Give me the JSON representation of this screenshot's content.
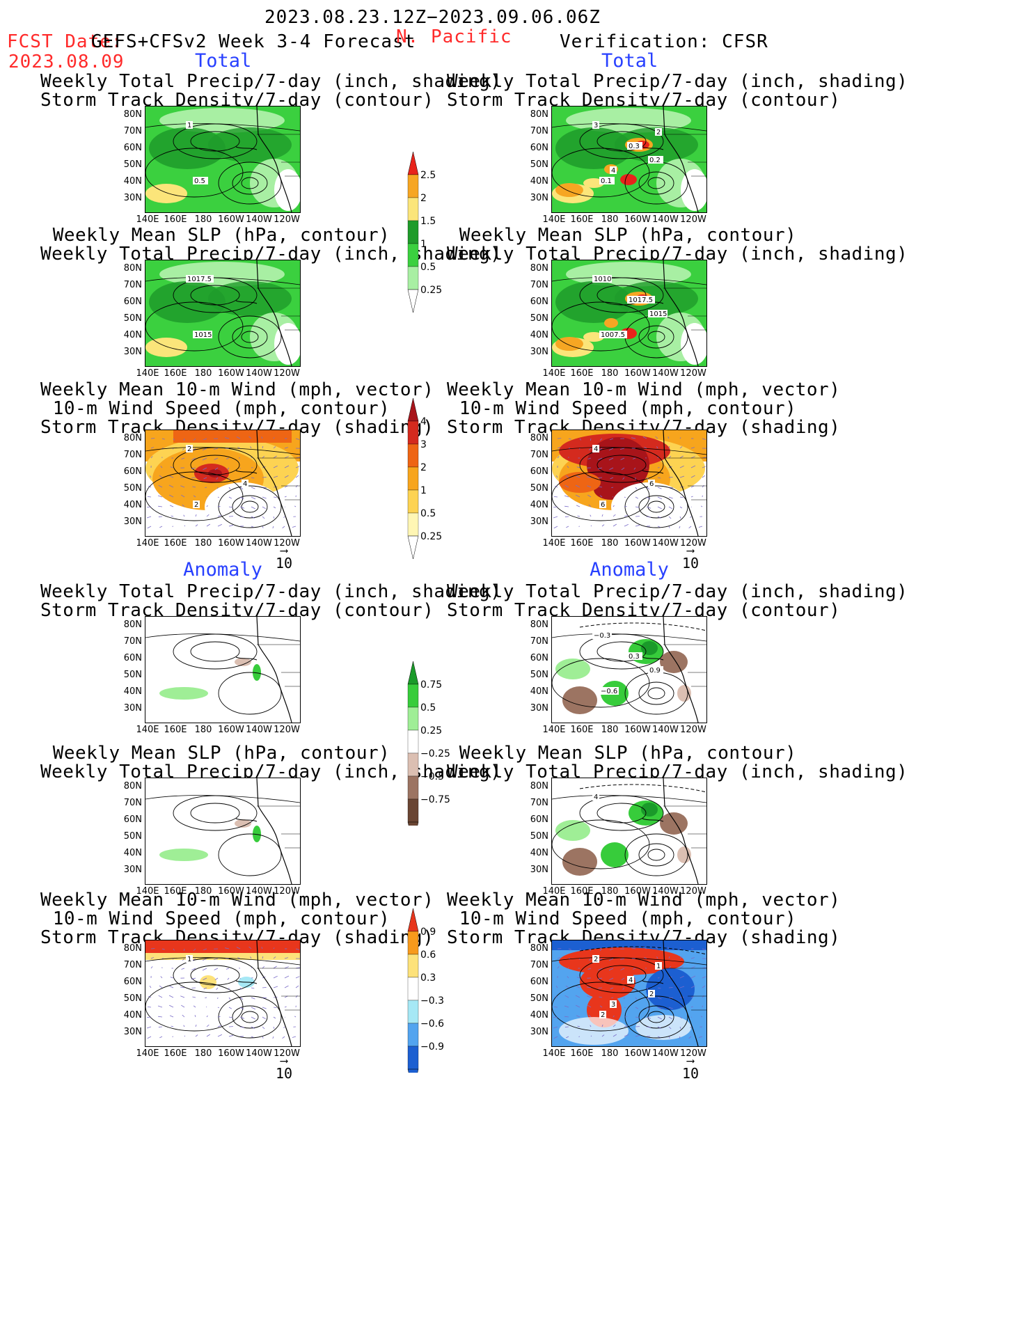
{
  "header": {
    "date_range": "2023.08.23.12Z−2023.09.06.06Z",
    "fcst_label": "FCST Date:",
    "fcst_model": "GEFS+CFSv2 Week 3-4 Forecast",
    "fcst_date": "2023.08.09",
    "region": "N. Pacific",
    "verification": "Verification: CFSR"
  },
  "sections": {
    "total": "Total",
    "anomaly": "Anomaly"
  },
  "panel_titles": {
    "precip_storm": [
      "Weekly Total Precip/7-day (inch, shading)",
      "Storm Track Density/7-day (contour)"
    ],
    "slp_precip": [
      "Weekly Mean SLP (hPa, contour)",
      "Weekly Total Precip/7-day (inch, shading)"
    ],
    "wind_storm": [
      "Weekly Mean 10-m Wind (mph, vector)",
      "10-m Wind Speed (mph, contour)",
      "Storm Track Density/7-day (shading)"
    ]
  },
  "axes": {
    "lat_labels": [
      "80N",
      "70N",
      "60N",
      "50N",
      "40N",
      "30N"
    ],
    "lon_labels": [
      "140E",
      "160E",
      "180",
      "160W",
      "140W",
      "120W"
    ]
  },
  "vector_ref": "10",
  "colorbars": {
    "precip_total": {
      "labels": [
        "2.5",
        "2",
        "1.5",
        "1",
        "0.5",
        "0.25"
      ],
      "colors": [
        "#e8231b",
        "#f6a623",
        "#fbe57a",
        "#1f9b2a",
        "#3bd03f",
        "#a8efa3"
      ]
    },
    "storm_total": {
      "labels": [
        "4",
        "3",
        "2",
        "1",
        "0.5",
        "0.25"
      ],
      "colors": [
        "#a8141a",
        "#d42a1e",
        "#ee6514",
        "#f7a51d",
        "#fdd352",
        "#fff6b4"
      ]
    },
    "precip_anom": {
      "labels": [
        "0.75",
        "0.5",
        "0.25",
        "−0.25",
        "−0.5",
        "−0.75"
      ],
      "colors": [
        "#1a9a2a",
        "#37cc3b",
        "#9fee96",
        "#ffffff",
        "#dbbfb2",
        "#9c7462",
        "#6a4533"
      ]
    },
    "storm_anom": {
      "labels": [
        "0.9",
        "0.6",
        "0.3",
        "−0.3",
        "−0.6",
        "−0.9"
      ],
      "colors": [
        "#e8361c",
        "#f79a1c",
        "#fde27a",
        "#ffffff",
        "#a6e8f5",
        "#53a4ef",
        "#1c5fd1"
      ]
    }
  },
  "contour_labels": {
    "fcst_precip_storm": [
      "1",
      "0.5"
    ],
    "obs_precip_storm": [
      "3",
      "0.1",
      "0.2",
      "0.3",
      "4",
      "2"
    ],
    "fcst_slp": [
      "1017.5",
      "1015"
    ],
    "obs_slp": [
      "1010",
      "1007.5",
      "1015",
      "1017.5"
    ],
    "fcst_wind": [
      "2",
      "2",
      "4"
    ],
    "obs_wind": [
      "4",
      "6",
      "6"
    ],
    "obs_precip_storm_anom": [
      "−0.3",
      "−0.6",
      "0.9",
      "0.3"
    ],
    "obs_slp_anom": [
      "4"
    ],
    "fcst_wind_anom": [
      "1"
    ],
    "obs_wind_anom": [
      "2",
      "2",
      "2",
      "4",
      "3",
      "1"
    ]
  }
}
